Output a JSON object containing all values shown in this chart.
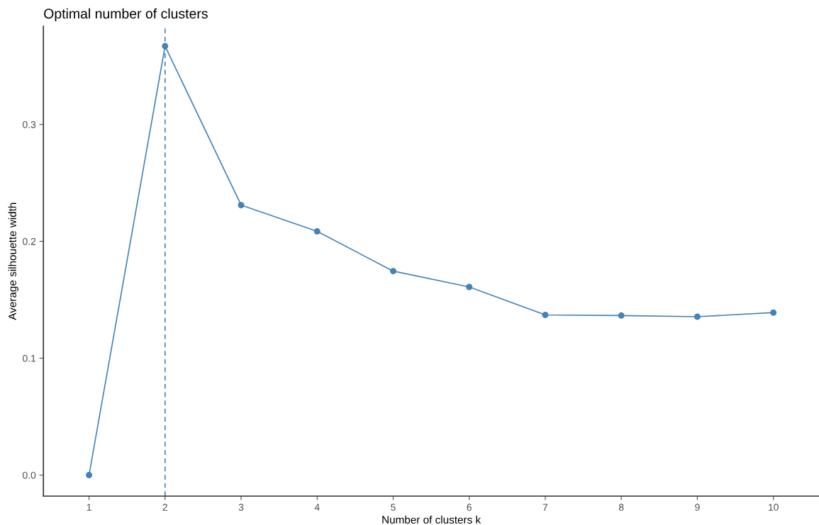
{
  "chart_data": {
    "type": "line",
    "title": "Optimal number of clusters",
    "xlabel": "Number of clusters k",
    "ylabel": "Average silhouette width",
    "x": [
      1,
      2,
      3,
      4,
      5,
      6,
      7,
      8,
      9,
      10
    ],
    "series": [
      {
        "color": "#4682b4",
        "values": [
          0.0,
          0.367,
          0.231,
          0.2085,
          0.1745,
          0.161,
          0.137,
          0.1365,
          0.1355,
          0.139
        ]
      }
    ],
    "xlim": [
      0.4,
      10.6
    ],
    "xticks": [
      1,
      2,
      3,
      4,
      5,
      6,
      7,
      8,
      9,
      10
    ],
    "ylim": [
      -0.018,
      0.384
    ],
    "yticks": [
      {
        "value": 0,
        "label": "0.0"
      },
      0.1,
      0.2,
      0.3
    ],
    "ref_lines": [
      {
        "axis": "x",
        "value": 2,
        "color": "#4682b4",
        "line_style": "dashed"
      }
    ],
    "marker": "circle",
    "line_style": "solid",
    "grid": false,
    "legend": false
  }
}
